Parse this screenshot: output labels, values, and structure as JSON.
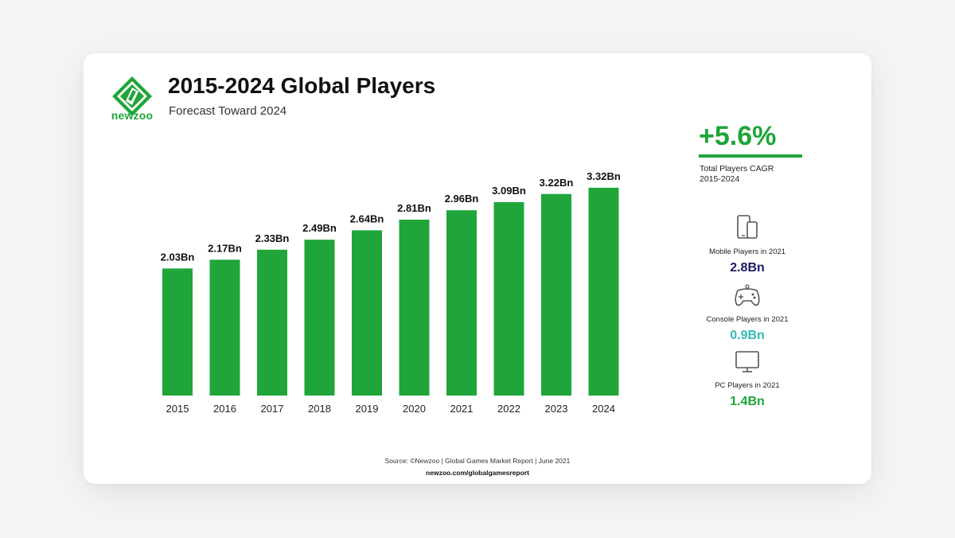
{
  "brand": {
    "name": "newzoo",
    "color": "#1fa53a"
  },
  "header": {
    "title": "2015-2024 Global Players",
    "subtitle": "Forecast Toward 2024"
  },
  "chart_data": {
    "type": "bar",
    "categories": [
      "2015",
      "2016",
      "2017",
      "2018",
      "2019",
      "2020",
      "2021",
      "2022",
      "2023",
      "2024"
    ],
    "values": [
      2.03,
      2.17,
      2.33,
      2.49,
      2.64,
      2.81,
      2.96,
      3.09,
      3.22,
      3.32
    ],
    "data_labels": [
      "2.03Bn",
      "2.17Bn",
      "2.33Bn",
      "2.49Bn",
      "2.64Bn",
      "2.81Bn",
      "2.96Bn",
      "3.09Bn",
      "3.22Bn",
      "3.32Bn"
    ],
    "title": "2015-2024 Global Players",
    "xlabel": "",
    "ylabel": "",
    "bar_color": "#1fa53a",
    "grid": false
  },
  "sidebar": {
    "cagr_value": "+5.6%",
    "cagr_label_line1": "Total Players CAGR",
    "cagr_label_line2": "2015-2024",
    "stats": [
      {
        "icon": "mobile-devices-icon",
        "label": "Mobile Players in 2021",
        "value": "2.8Bn",
        "color": "#1a1a5e"
      },
      {
        "icon": "gamepad-icon",
        "label": "Console Players in 2021",
        "value": "0.9Bn",
        "color": "#35b8b8"
      },
      {
        "icon": "monitor-icon",
        "label": "PC Players in 2021",
        "value": "1.4Bn",
        "color": "#1fa53a"
      }
    ]
  },
  "footer": {
    "source": "Source: ©Newzoo | Global Games Market Report | June 2021",
    "url": "newzoo.com/globalgamesreport"
  }
}
